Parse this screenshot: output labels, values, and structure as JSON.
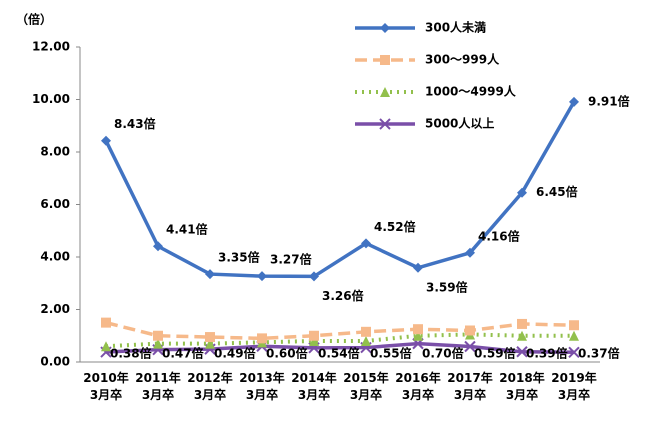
{
  "chart_data": {
    "type": "line",
    "y_label": "（倍）",
    "categories": [
      "2010年\n3月卒",
      "2011年\n3月卒",
      "2012年\n3月卒",
      "2013年\n3月卒",
      "2014年\n3月卒",
      "2015年\n3月卒",
      "2016年\n3月卒",
      "2017年\n3月卒",
      "2018年\n3月卒",
      "2019年\n3月卒"
    ],
    "series": [
      {
        "name": "300人未満",
        "color": "#4173c2",
        "marker": "diamond",
        "dash": "solid",
        "values": [
          8.43,
          4.41,
          3.35,
          3.27,
          3.26,
          4.52,
          3.59,
          4.16,
          6.45,
          9.91
        ],
        "value_labels": [
          "8.43倍",
          "4.41倍",
          "3.35倍",
          "3.27倍",
          "3.26倍",
          "4.52倍",
          "3.59倍",
          "4.16倍",
          "6.45倍",
          "9.91倍"
        ]
      },
      {
        "name": "300〜999人",
        "color": "#f6b98a",
        "marker": "square",
        "dash": "dashed",
        "values": [
          1.5,
          1.0,
          0.95,
          0.9,
          1.0,
          1.15,
          1.25,
          1.2,
          1.45,
          1.4
        ]
      },
      {
        "name": "1000〜4999人",
        "color": "#92c04c",
        "marker": "triangle",
        "dash": "dotted",
        "values": [
          0.6,
          0.7,
          0.7,
          0.75,
          0.8,
          0.8,
          1.0,
          1.05,
          1.0,
          1.0
        ]
      },
      {
        "name": "5000人以上",
        "color": "#7a4fa8",
        "marker": "x",
        "dash": "solid",
        "values": [
          0.38,
          0.47,
          0.49,
          0.6,
          0.54,
          0.55,
          0.7,
          0.59,
          0.39,
          0.37
        ],
        "value_labels": [
          "0.38倍",
          "0.47倍",
          "0.49倍",
          "0.60倍",
          "0.54倍",
          "0.55倍",
          "0.70倍",
          "0.59倍",
          "0.39倍",
          "0.37倍"
        ]
      }
    ],
    "ylim": [
      0,
      12
    ],
    "yticks": [
      {
        "value": 0,
        "label": "0.00"
      },
      {
        "value": 2,
        "label": "2.00"
      },
      {
        "value": 4,
        "label": "4.00"
      },
      {
        "value": 6,
        "label": "6.00"
      },
      {
        "value": 8,
        "label": "8.00"
      },
      {
        "value": 10,
        "label": "10.00"
      },
      {
        "value": 12,
        "label": "12.00"
      }
    ],
    "legend": "top-right"
  }
}
